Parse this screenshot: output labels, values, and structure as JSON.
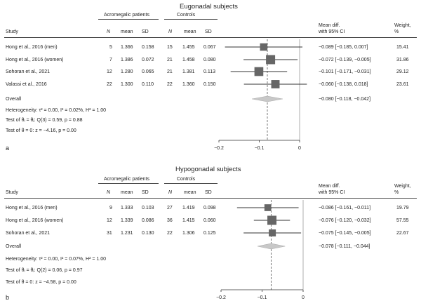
{
  "panels": [
    {
      "title": "Eugonadal subjects",
      "label": "a",
      "headers": {
        "study": "Study",
        "acro": "Acromegalic patients",
        "controls": "Controls",
        "n1": "N",
        "mean1": "mean",
        "sd1": "SD",
        "n2": "N",
        "mean2": "mean",
        "sd2": "SD",
        "effect_l1": "Mean diff.",
        "effect_l2": "with 95% CI",
        "weight_l1": "Weight,",
        "weight_l2": "%"
      },
      "rows": [
        {
          "study": "Hong et al., 2016 (men)",
          "n1": "5",
          "mean1": "1.366",
          "sd1": "0.158",
          "n2": "15",
          "mean2": "1.455",
          "sd2": "0.067",
          "ci_text": "−0.089 [−0.185, 0.007]",
          "weight": "15.41",
          "est": -0.089,
          "lo": -0.185,
          "hi": 0.007,
          "w": 15.41
        },
        {
          "study": "Hong et al., 2016 (women)",
          "n1": "7",
          "mean1": "1.386",
          "sd1": "0.072",
          "n2": "21",
          "mean2": "1.458",
          "sd2": "0.080",
          "ci_text": "−0.072 [−0.139, −0.005]",
          "weight": "31.86",
          "est": -0.072,
          "lo": -0.139,
          "hi": -0.005,
          "w": 31.86
        },
        {
          "study": "Sohoran et al., 2021",
          "n1": "12",
          "mean1": "1.280",
          "sd1": "0.065",
          "n2": "21",
          "mean2": "1.381",
          "sd2": "0.113",
          "ci_text": "−0.101 [−0.171, −0.031]",
          "weight": "29.12",
          "est": -0.101,
          "lo": -0.171,
          "hi": -0.031,
          "w": 29.12
        },
        {
          "study": "Valassi et al., 2016",
          "n1": "22",
          "mean1": "1.300",
          "sd1": "0.110",
          "n2": "22",
          "mean2": "1.360",
          "sd2": "0.150",
          "ci_text": "−0.060 [−0.138, 0.018]",
          "weight": "23.61",
          "est": -0.06,
          "lo": -0.138,
          "hi": 0.018,
          "w": 23.61
        }
      ],
      "overall": {
        "label": "Overall",
        "ci_text": "−0.080 [−0.118, −0.042]",
        "est": -0.08,
        "lo": -0.118,
        "hi": -0.042
      },
      "stats": [
        "Heterogeneity: τ² = 0.00, I² = 0.02%, H² = 1.00",
        "Test of θᵢ = θⱼ: Q(3) = 0.59, p = 0.88",
        "Test of θ = 0: z = −4.16, p = 0.00"
      ],
      "ticks": [
        -0.2,
        -0.1,
        0
      ],
      "tick_labels": [
        "−0.2",
        "−0.1",
        "0"
      ]
    },
    {
      "title": "Hypogonadal subjects",
      "label": "b",
      "headers": {
        "study": "Study",
        "acro": "Acromegalic patients",
        "controls": "Controls",
        "n1": "N",
        "mean1": "mean",
        "sd1": "SD",
        "n2": "N",
        "mean2": "mean",
        "sd2": "SD",
        "effect_l1": "Mean diff.",
        "effect_l2": "with 95% CI",
        "weight_l1": "Weight,",
        "weight_l2": "%"
      },
      "rows": [
        {
          "study": "Hong et al., 2016 (men)",
          "n1": "9",
          "mean1": "1.333",
          "sd1": "0.103",
          "n2": "27",
          "mean2": "1.419",
          "sd2": "0.098",
          "ci_text": "−0.086 [−0.161, −0.011]",
          "weight": "19.79",
          "est": -0.086,
          "lo": -0.161,
          "hi": -0.011,
          "w": 19.79
        },
        {
          "study": "Hong et al., 2016 (women)",
          "n1": "12",
          "mean1": "1.339",
          "sd1": "0.086",
          "n2": "36",
          "mean2": "1.415",
          "sd2": "0.060",
          "ci_text": "−0.076 [−0.120, −0.032]",
          "weight": "57.55",
          "est": -0.076,
          "lo": -0.12,
          "hi": -0.032,
          "w": 57.55
        },
        {
          "study": "Sohoran et al., 2021",
          "n1": "31",
          "mean1": "1.231",
          "sd1": "0.130",
          "n2": "22",
          "mean2": "1.306",
          "sd2": "0.125",
          "ci_text": "−0.075 [−0.145, −0.005]",
          "weight": "22.67",
          "est": -0.075,
          "lo": -0.145,
          "hi": -0.005,
          "w": 22.67
        }
      ],
      "overall": {
        "label": "Overall",
        "ci_text": "−0.078 [−0.111, −0.044]",
        "est": -0.078,
        "lo": -0.111,
        "hi": -0.044
      },
      "stats": [
        "Heterogeneity: τ² = 0.00, I² = 0.07%, H² = 1.00",
        "Test of θᵢ = θⱼ: Q(2) = 0.06, p = 0.97",
        "Test of θ = 0: z = −4.58, p = 0.00"
      ],
      "ticks": [
        -0.2,
        -0.1,
        0
      ],
      "tick_labels": [
        "−0.2",
        "−0.1",
        "0"
      ]
    }
  ],
  "colors": {
    "marker": "#666666",
    "diamond": "#c8c8c8",
    "line": "#333333"
  },
  "chart_data": [
    {
      "type": "forest",
      "title": "Eugonadal subjects",
      "categories": [
        "Hong et al., 2016 (men)",
        "Hong et al., 2016 (women)",
        "Sohoran et al., 2021",
        "Valassi et al., 2016",
        "Overall"
      ],
      "values": [
        -0.089,
        -0.072,
        -0.101,
        -0.06,
        -0.08
      ],
      "ci_low": [
        -0.185,
        -0.139,
        -0.171,
        -0.138,
        -0.118
      ],
      "ci_high": [
        0.007,
        -0.005,
        -0.031,
        0.018,
        -0.042
      ],
      "weights": [
        15.41,
        31.86,
        29.12,
        23.61,
        null
      ],
      "xlim": [
        -0.2,
        0
      ]
    },
    {
      "type": "forest",
      "title": "Hypogonadal subjects",
      "categories": [
        "Hong et al., 2016 (men)",
        "Hong et al., 2016 (women)",
        "Sohoran et al., 2021",
        "Overall"
      ],
      "values": [
        -0.086,
        -0.076,
        -0.075,
        -0.078
      ],
      "ci_low": [
        -0.161,
        -0.12,
        -0.145,
        -0.111
      ],
      "ci_high": [
        -0.011,
        -0.032,
        -0.005,
        -0.044
      ],
      "weights": [
        19.79,
        57.55,
        22.67,
        null
      ],
      "xlim": [
        -0.2,
        0
      ]
    }
  ]
}
